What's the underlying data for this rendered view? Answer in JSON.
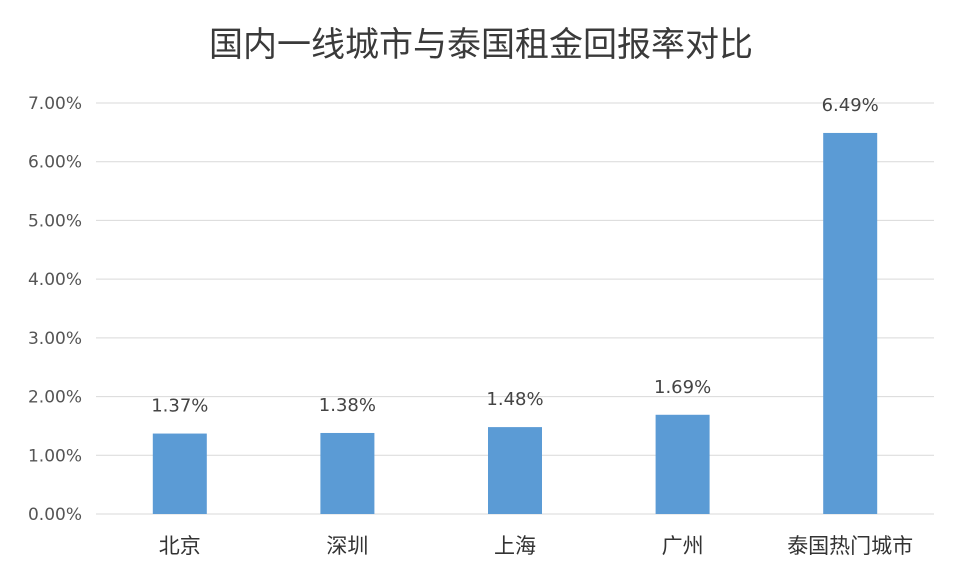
{
  "chart_data": {
    "type": "bar",
    "title": "国内一线城市与泰国租金回报率对比",
    "categories": [
      "北京",
      "深圳",
      "上海",
      "广州",
      "泰国热门城市"
    ],
    "values": [
      1.37,
      1.38,
      1.48,
      1.69,
      6.49
    ],
    "data_labels": [
      "1.37%",
      "1.38%",
      "1.48%",
      "1.69%",
      "6.49%"
    ],
    "y_ticks": [
      0,
      1,
      2,
      3,
      4,
      5,
      6,
      7
    ],
    "y_tick_labels": [
      "0.00%",
      "1.00%",
      "2.00%",
      "3.00%",
      "4.00%",
      "5.00%",
      "6.00%",
      "7.00%"
    ],
    "ylim": [
      0,
      7
    ],
    "grid": true,
    "legend": "none",
    "bar_color": "#5b9bd5",
    "grid_color": "#d9d9d9"
  }
}
